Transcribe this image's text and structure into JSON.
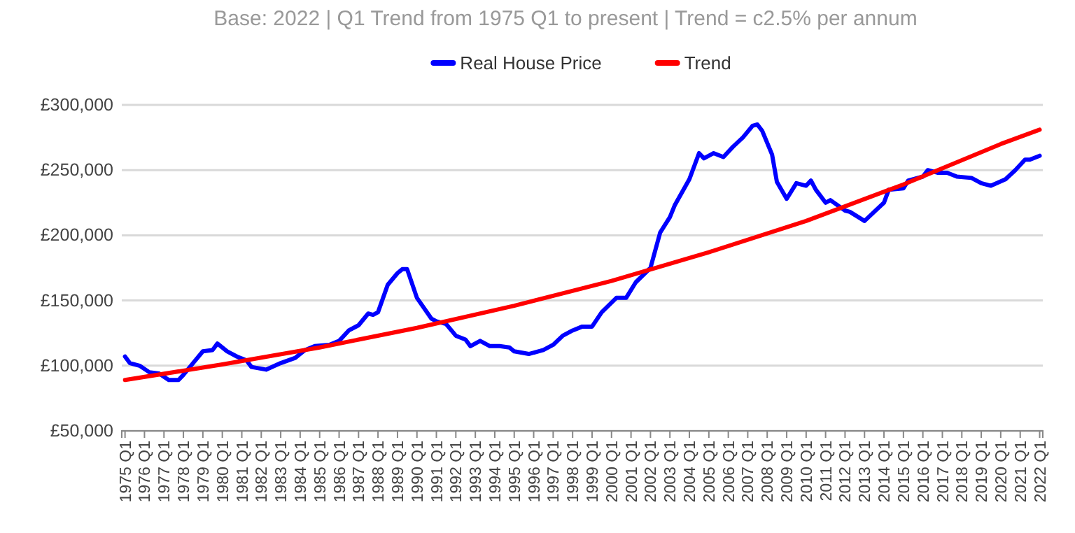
{
  "chart_data": {
    "type": "line",
    "title": "Base: 2022 | Q1 Trend from 1975 Q1 to present | Trend = c2.5% per annum",
    "legend": "top",
    "grid": "y",
    "marker": "none",
    "line_style": "solid",
    "xlim": [
      "1974-11",
      "2022-03"
    ],
    "ylim": [
      50000,
      300000
    ],
    "yticks": [
      {
        "value": 50000,
        "label": "£50,000"
      },
      {
        "value": 100000,
        "label": "£100,000"
      },
      {
        "value": 150000,
        "label": "£150,000"
      },
      {
        "value": 200000,
        "label": "£200,000"
      },
      {
        "value": 250000,
        "label": "£250,000"
      },
      {
        "value": 300000,
        "label": "£300,000"
      }
    ],
    "xticks": [
      {
        "value": "1975-01",
        "label": "1975 Q1"
      },
      {
        "value": "1976-01",
        "label": "1976 Q1"
      },
      {
        "value": "1977-01",
        "label": "1977 Q1"
      },
      {
        "value": "1978-01",
        "label": "1978 Q1"
      },
      {
        "value": "1979-01",
        "label": "1979 Q1"
      },
      {
        "value": "1980-01",
        "label": "1980 Q1"
      },
      {
        "value": "1981-01",
        "label": "1981 Q1"
      },
      {
        "value": "1982-01",
        "label": "1982 Q1"
      },
      {
        "value": "1983-01",
        "label": "1983 Q1"
      },
      {
        "value": "1984-01",
        "label": "1984 Q1"
      },
      {
        "value": "1985-01",
        "label": "1985 Q1"
      },
      {
        "value": "1986-01",
        "label": "1986 Q1"
      },
      {
        "value": "1987-01",
        "label": "1987 Q1"
      },
      {
        "value": "1988-01",
        "label": "1988 Q1"
      },
      {
        "value": "1989-01",
        "label": "1989 Q1"
      },
      {
        "value": "1990-01",
        "label": "1990 Q1"
      },
      {
        "value": "1991-01",
        "label": "1991 Q1"
      },
      {
        "value": "1992-01",
        "label": "1992 Q1"
      },
      {
        "value": "1993-01",
        "label": "1993 Q1"
      },
      {
        "value": "1994-01",
        "label": "1994 Q1"
      },
      {
        "value": "1995-01",
        "label": "1995 Q1"
      },
      {
        "value": "1996-01",
        "label": "1996 Q1"
      },
      {
        "value": "1997-01",
        "label": "1997 Q1"
      },
      {
        "value": "1998-01",
        "label": "1998 Q1"
      },
      {
        "value": "1999-01",
        "label": "1999 Q1"
      },
      {
        "value": "2000-01",
        "label": "2000 Q1"
      },
      {
        "value": "2001-01",
        "label": "2001 Q1"
      },
      {
        "value": "2002-01",
        "label": "2002 Q1"
      },
      {
        "value": "2003-01",
        "label": "2003 Q1"
      },
      {
        "value": "2004-01",
        "label": "2004 Q1"
      },
      {
        "value": "2005-01",
        "label": "2005 Q1"
      },
      {
        "value": "2006-01",
        "label": "2006 Q1"
      },
      {
        "value": "2007-01",
        "label": "2007 Q1"
      },
      {
        "value": "2008-01",
        "label": "2008 Q1"
      },
      {
        "value": "2009-01",
        "label": "2009 Q1"
      },
      {
        "value": "2010-01",
        "label": "2010 Q1"
      },
      {
        "value": "2011-01",
        "label": "2011 Q1"
      },
      {
        "value": "2012-01",
        "label": "2012 Q1"
      },
      {
        "value": "2013-01",
        "label": "2013 Q1"
      },
      {
        "value": "2014-01",
        "label": "2014 Q1"
      },
      {
        "value": "2015-01",
        "label": "2015 Q1"
      },
      {
        "value": "2016-01",
        "label": "2016 Q1"
      },
      {
        "value": "2017-01",
        "label": "2017 Q1"
      },
      {
        "value": "2018-01",
        "label": "2018 Q1"
      },
      {
        "value": "2019-01",
        "label": "2019 Q1"
      },
      {
        "value": "2020-01",
        "label": "2020 Q1"
      },
      {
        "value": "2021-01",
        "label": "2021 Q1"
      },
      {
        "value": "2022-01",
        "label": "2022 Q1"
      }
    ],
    "series": [
      {
        "name": "Real House Price",
        "color": "#0000ff",
        "x": [
          "1975-01",
          "1975-04",
          "1975-10",
          "1976-04",
          "1976-10",
          "1977-04",
          "1977-10",
          "1978-01",
          "1978-07",
          "1979-01",
          "1979-07",
          "1979-10",
          "1980-04",
          "1980-10",
          "1981-04",
          "1981-07",
          "1982-04",
          "1983-01",
          "1983-10",
          "1984-04",
          "1984-10",
          "1985-07",
          "1986-01",
          "1986-07",
          "1987-01",
          "1987-07",
          "1987-10",
          "1988-01",
          "1988-07",
          "1989-01",
          "1989-04",
          "1989-07",
          "1990-01",
          "1990-10",
          "1991-01",
          "1991-07",
          "1992-01",
          "1992-07",
          "1992-10",
          "1993-04",
          "1993-10",
          "1994-04",
          "1994-10",
          "1995-01",
          "1995-10",
          "1996-07",
          "1997-01",
          "1997-07",
          "1998-01",
          "1998-07",
          "1999-01",
          "1999-07",
          "2000-04",
          "2000-10",
          "2001-04",
          "2002-01",
          "2002-07",
          "2003-01",
          "2003-04",
          "2004-01",
          "2004-07",
          "2004-10",
          "2005-04",
          "2005-10",
          "2006-04",
          "2006-10",
          "2007-04",
          "2007-07",
          "2007-10",
          "2008-04",
          "2008-07",
          "2009-01",
          "2009-07",
          "2010-01",
          "2010-04",
          "2010-07",
          "2011-01",
          "2011-04",
          "2012-01",
          "2012-04",
          "2013-01",
          "2013-07",
          "2014-01",
          "2014-04",
          "2015-01",
          "2015-04",
          "2016-01",
          "2016-04",
          "2016-10",
          "2017-04",
          "2017-10",
          "2018-07",
          "2019-01",
          "2019-07",
          "2020-04",
          "2020-10",
          "2021-04",
          "2021-07",
          "2022-01"
        ],
        "values": [
          107000,
          102000,
          100000,
          95000,
          94000,
          89000,
          89000,
          93000,
          102000,
          111000,
          112000,
          117000,
          111000,
          107000,
          104000,
          99000,
          97000,
          102000,
          106000,
          112000,
          115000,
          116000,
          119000,
          127000,
          131000,
          140000,
          139000,
          141000,
          162000,
          171000,
          174000,
          174000,
          152000,
          136000,
          134000,
          132000,
          123000,
          120000,
          115000,
          119000,
          115000,
          115000,
          114000,
          111000,
          109000,
          112000,
          116000,
          123000,
          127000,
          130000,
          130000,
          141000,
          152000,
          152000,
          164000,
          175000,
          202000,
          214000,
          223000,
          243000,
          263000,
          259000,
          263000,
          260000,
          268000,
          275000,
          284000,
          285000,
          280000,
          262000,
          241000,
          228000,
          240000,
          238000,
          242000,
          235000,
          225000,
          227000,
          219000,
          218000,
          211000,
          218000,
          225000,
          235000,
          236000,
          242000,
          245000,
          250000,
          248000,
          248000,
          245000,
          244000,
          240000,
          238000,
          243000,
          250000,
          258000,
          258000,
          261000
        ]
      },
      {
        "name": "Trend",
        "color": "#ff0000",
        "x": [
          "1975-01",
          "1980-01",
          "1985-01",
          "1990-01",
          "1995-01",
          "2000-01",
          "2005-01",
          "2010-01",
          "2015-01",
          "2020-01",
          "2022-01"
        ],
        "values": [
          89000,
          101000,
          114000,
          129000,
          146000,
          165000,
          187000,
          211000,
          239000,
          270000,
          281000
        ]
      }
    ]
  }
}
